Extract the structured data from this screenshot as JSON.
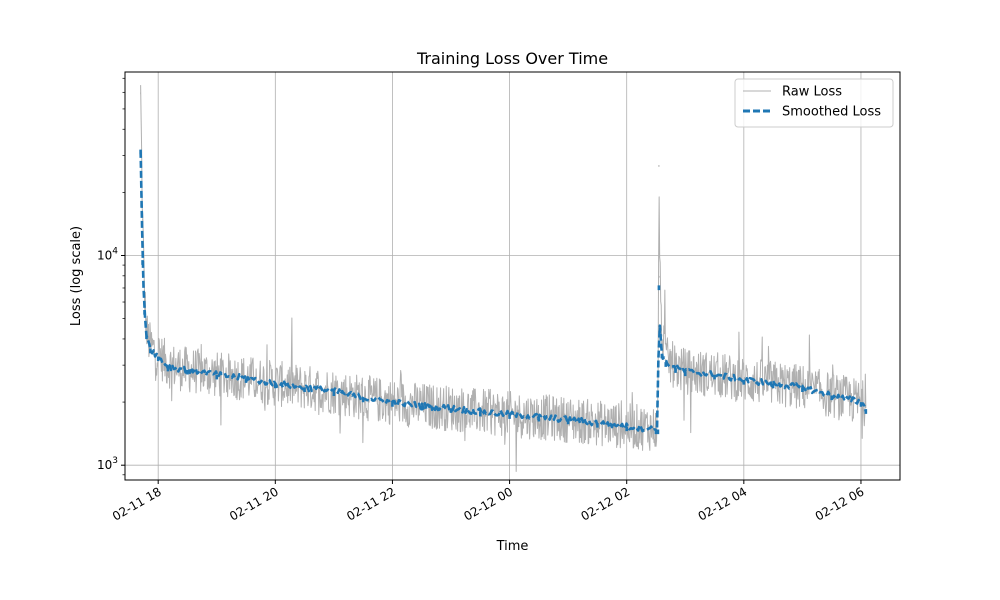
{
  "chart_data": {
    "type": "line",
    "title": "Training Loss Over Time",
    "xlabel": "Time",
    "ylabel": "Loss (log scale)",
    "yscale": "log",
    "ylim": [
      850,
      75000
    ],
    "xlim": [
      "2025-02-11T17:26:00",
      "2025-02-12T06:40:00"
    ],
    "x_ticks": [
      {
        "t": "2025-02-11T18:00:00",
        "label": "02-11 18"
      },
      {
        "t": "2025-02-11T20:00:00",
        "label": "02-11 20"
      },
      {
        "t": "2025-02-11T22:00:00",
        "label": "02-11 22"
      },
      {
        "t": "2025-02-12T00:00:00",
        "label": "02-12 00"
      },
      {
        "t": "2025-02-12T02:00:00",
        "label": "02-12 02"
      },
      {
        "t": "2025-02-12T04:00:00",
        "label": "02-12 04"
      },
      {
        "t": "2025-02-12T06:00:00",
        "label": "02-12 06"
      }
    ],
    "y_ticks": [
      {
        "value": 1000,
        "base": "10",
        "exp": "3"
      },
      {
        "value": 10000,
        "base": "10",
        "exp": "4"
      }
    ],
    "grid": true,
    "legend_position": "top-right",
    "series": [
      {
        "name": "Raw Loss",
        "color": "#b0b0b0",
        "style": "solid",
        "noise_band": 0.11,
        "points": [
          [
            "2025-02-11T17:42:00",
            60000
          ],
          [
            "2025-02-11T17:43:00",
            30000
          ],
          [
            "2025-02-11T17:44:00",
            15000
          ],
          [
            "2025-02-11T17:46:00",
            6500
          ],
          [
            "2025-02-11T17:48:00",
            4300
          ],
          [
            "2025-02-11T17:52:00",
            3700
          ],
          [
            "2025-02-11T18:00:00",
            3400
          ],
          [
            "2025-02-11T18:10:00",
            3000
          ],
          [
            "2025-02-11T18:30:00",
            2850
          ],
          [
            "2025-02-11T19:00:00",
            2700
          ],
          [
            "2025-02-11T19:30:00",
            2600
          ],
          [
            "2025-02-11T20:00:00",
            2450
          ],
          [
            "2025-02-11T20:30:00",
            2350
          ],
          [
            "2025-02-11T21:00:00",
            2250
          ],
          [
            "2025-02-11T21:30:00",
            2100
          ],
          [
            "2025-02-11T22:00:00",
            2000
          ],
          [
            "2025-02-11T22:30:00",
            1920
          ],
          [
            "2025-02-11T23:00:00",
            1870
          ],
          [
            "2025-02-11T23:30:00",
            1800
          ],
          [
            "2025-02-12T00:00:00",
            1750
          ],
          [
            "2025-02-12T00:30:00",
            1700
          ],
          [
            "2025-02-12T01:00:00",
            1650
          ],
          [
            "2025-02-12T01:30:00",
            1590
          ],
          [
            "2025-02-12T02:00:00",
            1530
          ],
          [
            "2025-02-12T02:30:00",
            1500
          ],
          [
            "2025-02-12T02:32:00",
            1480
          ],
          [
            "2025-02-12T02:33:00",
            27000
          ],
          [
            "2025-02-12T02:34:00",
            8000
          ],
          [
            "2025-02-12T02:36:00",
            4200
          ],
          [
            "2025-02-12T02:40:00",
            3200
          ],
          [
            "2025-02-12T02:50:00",
            2950
          ],
          [
            "2025-02-12T03:00:00",
            2800
          ],
          [
            "2025-02-12T03:30:00",
            2700
          ],
          [
            "2025-02-12T04:00:00",
            2550
          ],
          [
            "2025-02-12T04:30:00",
            2450
          ],
          [
            "2025-02-12T05:00:00",
            2350
          ],
          [
            "2025-02-12T05:30:00",
            2150
          ],
          [
            "2025-02-12T06:00:00",
            2000
          ],
          [
            "2025-02-12T06:05:00",
            1950
          ]
        ]
      },
      {
        "name": "Smoothed Loss",
        "color": "#1f77b4",
        "style": "dashed",
        "points": [
          [
            "2025-02-11T17:42:00",
            32000
          ],
          [
            "2025-02-11T17:43:00",
            18000
          ],
          [
            "2025-02-11T17:44:00",
            9500
          ],
          [
            "2025-02-11T17:46:00",
            5500
          ],
          [
            "2025-02-11T17:48:00",
            4200
          ],
          [
            "2025-02-11T17:52:00",
            3600
          ],
          [
            "2025-02-11T18:00:00",
            3300
          ],
          [
            "2025-02-11T18:10:00",
            2950
          ],
          [
            "2025-02-11T18:30:00",
            2850
          ],
          [
            "2025-02-11T19:00:00",
            2700
          ],
          [
            "2025-02-11T19:30:00",
            2600
          ],
          [
            "2025-02-11T20:00:00",
            2450
          ],
          [
            "2025-02-11T20:30:00",
            2350
          ],
          [
            "2025-02-11T21:00:00",
            2250
          ],
          [
            "2025-02-11T21:30:00",
            2100
          ],
          [
            "2025-02-11T22:00:00",
            2000
          ],
          [
            "2025-02-11T22:30:00",
            1920
          ],
          [
            "2025-02-11T23:00:00",
            1870
          ],
          [
            "2025-02-11T23:30:00",
            1800
          ],
          [
            "2025-02-12T00:00:00",
            1750
          ],
          [
            "2025-02-12T00:30:00",
            1700
          ],
          [
            "2025-02-12T01:00:00",
            1650
          ],
          [
            "2025-02-12T01:30:00",
            1590
          ],
          [
            "2025-02-12T02:00:00",
            1530
          ],
          [
            "2025-02-12T02:30:00",
            1480
          ],
          [
            "2025-02-12T02:32:00",
            1480
          ],
          [
            "2025-02-12T02:33:00",
            7200
          ],
          [
            "2025-02-12T02:34:00",
            4500
          ],
          [
            "2025-02-12T02:36:00",
            3400
          ],
          [
            "2025-02-12T02:40:00",
            3100
          ],
          [
            "2025-02-12T02:50:00",
            2900
          ],
          [
            "2025-02-12T03:00:00",
            2800
          ],
          [
            "2025-02-12T03:30:00",
            2700
          ],
          [
            "2025-02-12T04:00:00",
            2550
          ],
          [
            "2025-02-12T04:30:00",
            2450
          ],
          [
            "2025-02-12T05:00:00",
            2350
          ],
          [
            "2025-02-12T05:30:00",
            2150
          ],
          [
            "2025-02-12T06:00:00",
            2000
          ],
          [
            "2025-02-12T06:05:00",
            1850
          ]
        ]
      }
    ]
  }
}
